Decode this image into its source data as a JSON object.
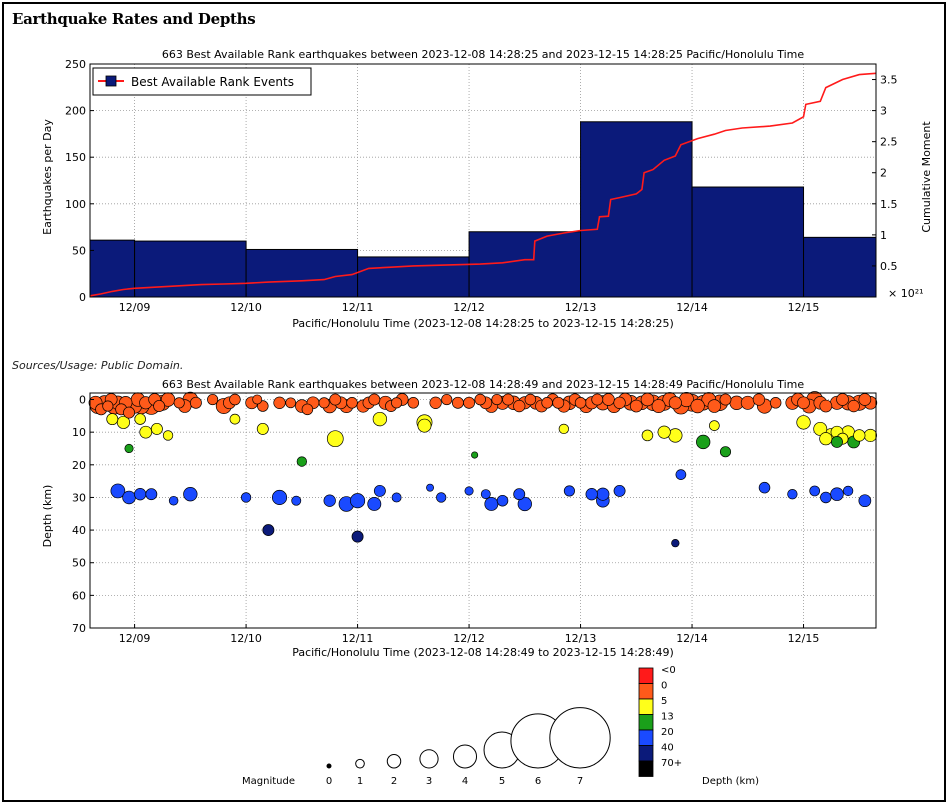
{
  "page": {
    "title": "Earthquake Rates and Depths",
    "sources": "Sources/Usage: Public Domain."
  },
  "chart_data": [
    {
      "type": "bar",
      "title": "663 Best Available Rank earthquakes between 2023-12-08 14:28:25 and 2023-12-15 14:28:25 Pacific/Honolulu Time",
      "xlabel": "Pacific/Honolulu Time (2023-12-08 14:28:25 to 2023-12-15 14:28:25)",
      "ylabel": "Earthquakes per Day",
      "y2label": "Cumulative Moment",
      "y2_multiplier": "× 10²¹",
      "x_range_days": [
        0,
        7.05
      ],
      "ylim": [
        0,
        250
      ],
      "y_ticks": [
        0,
        50,
        100,
        150,
        200,
        250
      ],
      "y2lim": [
        0,
        3.75
      ],
      "y2_ticks": [
        0.5,
        1,
        1.5,
        2,
        2.5,
        3,
        3.5
      ],
      "x_ticks": [
        {
          "day": 0.4,
          "label": "12/09"
        },
        {
          "day": 1.4,
          "label": "12/10"
        },
        {
          "day": 2.4,
          "label": "12/11"
        },
        {
          "day": 3.4,
          "label": "12/12"
        },
        {
          "day": 4.4,
          "label": "12/13"
        },
        {
          "day": 5.4,
          "label": "12/14"
        },
        {
          "day": 6.4,
          "label": "12/15"
        }
      ],
      "legend": "Best Available Rank Events",
      "legend_position": "top-left",
      "bar_color": "#0b1a7a",
      "line_color": "#ff1a1a",
      "bars": [
        {
          "start": 0,
          "end": 0.4,
          "value": 61
        },
        {
          "start": 0.4,
          "end": 1.4,
          "value": 60
        },
        {
          "start": 1.4,
          "end": 2.4,
          "value": 51
        },
        {
          "start": 2.4,
          "end": 3.4,
          "value": 43
        },
        {
          "start": 3.4,
          "end": 4.4,
          "value": 70
        },
        {
          "start": 4.4,
          "end": 5.4,
          "value": 188
        },
        {
          "start": 5.4,
          "end": 6.4,
          "value": 118
        },
        {
          "start": 6.4,
          "end": 7.05,
          "value": 64
        }
      ],
      "cumulative_moment": [
        [
          0,
          0.02
        ],
        [
          0.1,
          0.05
        ],
        [
          0.2,
          0.09
        ],
        [
          0.3,
          0.12
        ],
        [
          0.4,
          0.14
        ],
        [
          0.6,
          0.16
        ],
        [
          0.8,
          0.18
        ],
        [
          1.0,
          0.2
        ],
        [
          1.2,
          0.21
        ],
        [
          1.4,
          0.22
        ],
        [
          1.6,
          0.24
        ],
        [
          1.9,
          0.26
        ],
        [
          2.1,
          0.28
        ],
        [
          2.2,
          0.33
        ],
        [
          2.35,
          0.36
        ],
        [
          2.5,
          0.46
        ],
        [
          2.7,
          0.48
        ],
        [
          2.9,
          0.5
        ],
        [
          3.1,
          0.51
        ],
        [
          3.3,
          0.52
        ],
        [
          3.5,
          0.53
        ],
        [
          3.7,
          0.55
        ],
        [
          3.9,
          0.6
        ],
        [
          3.98,
          0.6
        ],
        [
          3.99,
          0.9
        ],
        [
          4.1,
          0.98
        ],
        [
          4.25,
          1.03
        ],
        [
          4.4,
          1.07
        ],
        [
          4.55,
          1.09
        ],
        [
          4.57,
          1.29
        ],
        [
          4.65,
          1.3
        ],
        [
          4.67,
          1.57
        ],
        [
          4.75,
          1.6
        ],
        [
          4.9,
          1.66
        ],
        [
          4.95,
          1.73
        ],
        [
          4.97,
          2.0
        ],
        [
          5.05,
          2.05
        ],
        [
          5.15,
          2.2
        ],
        [
          5.25,
          2.27
        ],
        [
          5.3,
          2.45
        ],
        [
          5.45,
          2.55
        ],
        [
          5.6,
          2.62
        ],
        [
          5.7,
          2.68
        ],
        [
          5.85,
          2.72
        ],
        [
          6.1,
          2.75
        ],
        [
          6.3,
          2.8
        ],
        [
          6.4,
          2.9
        ],
        [
          6.42,
          3.1
        ],
        [
          6.55,
          3.15
        ],
        [
          6.6,
          3.37
        ],
        [
          6.75,
          3.5
        ],
        [
          6.9,
          3.58
        ],
        [
          7.05,
          3.6
        ]
      ]
    },
    {
      "type": "scatter",
      "title": "663 Best Available Rank earthquakes between 2023-12-08 14:28:49 and 2023-12-15 14:28:49 Pacific/Honolulu Time",
      "xlabel": "Pacific/Honolulu Time (2023-12-08 14:28:49 to 2023-12-15 14:28:49)",
      "ylabel": "Depth (km)",
      "x_range_days": [
        0,
        7.05
      ],
      "ylim": [
        -2,
        70
      ],
      "y_ticks": [
        0,
        10,
        20,
        30,
        40,
        50,
        60,
        70
      ],
      "y_inverted": true,
      "x_ticks": [
        {
          "day": 0.4,
          "label": "12/09"
        },
        {
          "day": 1.4,
          "label": "12/10"
        },
        {
          "day": 2.4,
          "label": "12/11"
        },
        {
          "day": 3.4,
          "label": "12/12"
        },
        {
          "day": 4.4,
          "label": "12/13"
        },
        {
          "day": 5.4,
          "label": "12/14"
        },
        {
          "day": 6.4,
          "label": "12/15"
        }
      ],
      "points": [
        [
          0.05,
          1,
          2.5
        ],
        [
          0.07,
          2,
          3.0
        ],
        [
          0.1,
          3,
          2.0
        ],
        [
          0.13,
          1,
          2.8
        ],
        [
          0.16,
          2,
          1.8
        ],
        [
          0.19,
          0,
          2.2
        ],
        [
          0.22,
          2,
          3.2
        ],
        [
          0.25,
          1,
          2.6
        ],
        [
          0.28,
          3,
          2.0
        ],
        [
          0.32,
          1,
          2.4
        ],
        [
          0.35,
          4,
          2.0
        ],
        [
          0.4,
          2,
          2.8
        ],
        [
          0.43,
          0,
          2.6
        ],
        [
          0.46,
          2,
          3.1
        ],
        [
          0.5,
          1,
          2.3
        ],
        [
          0.55,
          2,
          3.4
        ],
        [
          0.58,
          0,
          2.2
        ],
        [
          0.62,
          2,
          2.0
        ],
        [
          0.65,
          1,
          3.0
        ],
        [
          0.7,
          0,
          2.6
        ],
        [
          0.8,
          1,
          1.8
        ],
        [
          0.85,
          2,
          2.4
        ],
        [
          0.9,
          0,
          2.9
        ],
        [
          0.95,
          1,
          2.0
        ],
        [
          1.1,
          0,
          1.8
        ],
        [
          1.2,
          2,
          3.0
        ],
        [
          1.25,
          1,
          2.2
        ],
        [
          1.3,
          0,
          1.9
        ],
        [
          1.45,
          1,
          2.2
        ],
        [
          1.5,
          0,
          1.5
        ],
        [
          1.55,
          2,
          1.9
        ],
        [
          1.7,
          1,
          2.1
        ],
        [
          1.8,
          1,
          1.7
        ],
        [
          1.9,
          2,
          2.4
        ],
        [
          1.95,
          3,
          1.9
        ],
        [
          2.0,
          1,
          2.2
        ],
        [
          2.1,
          1,
          1.8
        ],
        [
          2.15,
          2,
          2.6
        ],
        [
          2.2,
          0,
          2.0
        ],
        [
          2.25,
          1,
          2.2
        ],
        [
          2.3,
          2,
          2.5
        ],
        [
          2.35,
          1,
          1.9
        ],
        [
          2.45,
          2,
          2.3
        ],
        [
          2.5,
          1,
          2.1
        ],
        [
          2.55,
          0,
          2.0
        ],
        [
          2.65,
          1,
          2.5
        ],
        [
          2.7,
          2,
          2.0
        ],
        [
          2.75,
          1,
          1.8
        ],
        [
          2.8,
          0,
          2.2
        ],
        [
          2.9,
          1,
          1.9
        ],
        [
          3.1,
          1,
          2.1
        ],
        [
          3.2,
          0,
          1.8
        ],
        [
          3.3,
          1,
          2.0
        ],
        [
          3.4,
          1,
          2.0
        ],
        [
          3.5,
          0,
          1.9
        ],
        [
          3.55,
          1,
          2.2
        ],
        [
          3.6,
          2,
          2.4
        ],
        [
          3.65,
          0,
          1.8
        ],
        [
          3.7,
          1,
          2.5
        ],
        [
          3.75,
          0,
          2.0
        ],
        [
          3.8,
          1,
          2.6
        ],
        [
          3.85,
          2,
          2.1
        ],
        [
          3.9,
          1,
          2.3
        ],
        [
          3.95,
          0,
          1.9
        ],
        [
          4.0,
          1,
          2.4
        ],
        [
          4.05,
          2,
          2.2
        ],
        [
          4.1,
          1,
          1.9
        ],
        [
          4.15,
          0,
          2.1
        ],
        [
          4.2,
          1,
          2.0
        ],
        [
          4.25,
          2,
          2.3
        ],
        [
          4.3,
          1,
          2.6
        ],
        [
          4.35,
          0,
          2.1
        ],
        [
          4.4,
          1,
          1.9
        ],
        [
          4.45,
          2,
          2.5
        ],
        [
          4.5,
          1,
          2.3
        ],
        [
          4.55,
          0,
          2.0
        ],
        [
          4.6,
          1,
          2.8
        ],
        [
          4.65,
          0,
          2.2
        ],
        [
          4.7,
          2,
          2.5
        ],
        [
          4.75,
          1,
          2.1
        ],
        [
          4.8,
          0,
          2.4
        ],
        [
          4.85,
          1,
          2.9
        ],
        [
          4.9,
          2,
          2.2
        ],
        [
          4.95,
          1,
          2.6
        ],
        [
          5.0,
          0,
          2.4
        ],
        [
          5.05,
          1,
          3.1
        ],
        [
          5.1,
          2,
          2.5
        ],
        [
          5.15,
          1,
          3.0
        ],
        [
          5.2,
          0,
          2.7
        ],
        [
          5.25,
          1,
          2.3
        ],
        [
          5.3,
          2,
          3.2
        ],
        [
          5.35,
          0,
          2.8
        ],
        [
          5.4,
          1,
          3.4
        ],
        [
          5.45,
          2,
          2.6
        ],
        [
          5.5,
          1,
          2.9
        ],
        [
          5.55,
          0,
          2.7
        ],
        [
          5.6,
          2,
          2.4
        ],
        [
          5.65,
          1,
          3.1
        ],
        [
          5.7,
          0,
          2.0
        ],
        [
          5.8,
          1,
          2.6
        ],
        [
          5.9,
          1,
          2.5
        ],
        [
          6.0,
          0,
          2.1
        ],
        [
          6.05,
          2,
          2.8
        ],
        [
          6.15,
          1,
          1.9
        ],
        [
          6.3,
          1,
          2.5
        ],
        [
          6.35,
          0,
          2.4
        ],
        [
          6.4,
          1,
          2.2
        ],
        [
          6.45,
          2,
          2.7
        ],
        [
          6.5,
          0,
          3.2
        ],
        [
          6.55,
          1,
          2.4
        ],
        [
          6.6,
          2,
          2.2
        ],
        [
          6.7,
          1,
          2.5
        ],
        [
          6.75,
          0,
          2.2
        ],
        [
          6.8,
          1,
          2.8
        ],
        [
          6.85,
          2,
          2.1
        ],
        [
          6.9,
          1,
          3.0
        ],
        [
          6.95,
          0,
          2.2
        ],
        [
          7.0,
          1,
          2.4
        ],
        [
          0.2,
          6,
          2.0
        ],
        [
          0.3,
          7,
          2.3
        ],
        [
          0.45,
          6,
          1.9
        ],
        [
          0.5,
          10,
          2.2
        ],
        [
          0.6,
          9,
          2.0
        ],
        [
          0.7,
          11,
          1.6
        ],
        [
          1.3,
          6,
          1.7
        ],
        [
          1.55,
          9,
          2.0
        ],
        [
          2.6,
          6,
          2.6
        ],
        [
          3.0,
          7,
          3.0
        ],
        [
          4.25,
          9,
          1.6
        ],
        [
          5.0,
          11,
          1.9
        ],
        [
          5.15,
          10,
          2.3
        ],
        [
          5.25,
          11,
          2.6
        ],
        [
          5.6,
          8,
          1.7
        ],
        [
          6.4,
          7,
          2.6
        ],
        [
          6.55,
          9,
          2.5
        ],
        [
          6.65,
          11,
          2.7
        ],
        [
          6.7,
          10,
          2.2
        ],
        [
          6.75,
          12,
          2.0
        ],
        [
          6.8,
          10,
          2.4
        ],
        [
          6.9,
          11,
          2.1
        ],
        [
          7.0,
          11,
          2.3
        ],
        [
          6.6,
          12,
          2.3
        ],
        [
          6.85,
          13,
          2.2
        ],
        [
          2.2,
          12,
          3.2
        ],
        [
          3.0,
          8,
          2.5
        ],
        [
          0.35,
          15,
          1.3
        ],
        [
          3.45,
          17,
          0.8
        ],
        [
          1.9,
          19,
          1.6
        ],
        [
          5.5,
          13,
          2.6
        ],
        [
          5.7,
          16,
          1.8
        ],
        [
          6.7,
          13,
          2.0
        ],
        [
          0.25,
          28,
          2.7
        ],
        [
          0.35,
          30,
          2.4
        ],
        [
          0.45,
          29,
          2.1
        ],
        [
          0.55,
          29,
          2.0
        ],
        [
          0.75,
          31,
          1.4
        ],
        [
          0.9,
          29,
          2.6
        ],
        [
          1.4,
          30,
          1.6
        ],
        [
          1.7,
          30,
          2.8
        ],
        [
          1.85,
          31,
          1.5
        ],
        [
          2.15,
          31,
          2.1
        ],
        [
          2.3,
          32,
          2.9
        ],
        [
          2.4,
          31,
          2.8
        ],
        [
          2.55,
          32,
          2.5
        ],
        [
          2.6,
          28,
          2.0
        ],
        [
          2.75,
          30,
          1.5
        ],
        [
          3.15,
          30,
          1.6
        ],
        [
          3.55,
          29,
          1.5
        ],
        [
          3.6,
          32,
          2.5
        ],
        [
          3.7,
          31,
          1.9
        ],
        [
          3.85,
          29,
          2.0
        ],
        [
          3.9,
          32,
          2.6
        ],
        [
          4.3,
          28,
          1.8
        ],
        [
          4.5,
          29,
          2.1
        ],
        [
          4.6,
          31,
          2.4
        ],
        [
          4.6,
          29,
          2.3
        ],
        [
          4.75,
          28,
          2.0
        ],
        [
          5.3,
          23,
          1.7
        ],
        [
          6.05,
          27,
          1.9
        ],
        [
          6.3,
          29,
          1.6
        ],
        [
          6.5,
          28,
          1.7
        ],
        [
          6.7,
          29,
          2.4
        ],
        [
          6.8,
          28,
          1.6
        ],
        [
          6.95,
          31,
          2.2
        ],
        [
          6.6,
          30,
          1.9
        ],
        [
          1.6,
          40,
          2.0
        ],
        [
          2.4,
          42,
          2.0
        ],
        [
          5.25,
          44,
          1.1
        ],
        [
          3.4,
          28,
          1.3
        ],
        [
          3.05,
          27,
          1.0
        ]
      ],
      "depth_colors": [
        {
          "label": "<0",
          "color": "#ff1a1a"
        },
        {
          "label": "0",
          "color": "#ff5a1a"
        },
        {
          "label": "5",
          "color": "#ffff1a"
        },
        {
          "label": "13",
          "color": "#1aa01a"
        },
        {
          "label": "20",
          "color": "#1a4aff"
        },
        {
          "label": "40",
          "color": "#0b1a7a"
        },
        {
          "label": "70+",
          "color": "#000000"
        }
      ],
      "depth_legend_title": "Depth (km)",
      "magnitude_legend_title": "Magnitude",
      "magnitude_labels": [
        "0",
        "1",
        "2",
        "3",
        "4",
        "5",
        "6",
        "7"
      ]
    }
  ]
}
